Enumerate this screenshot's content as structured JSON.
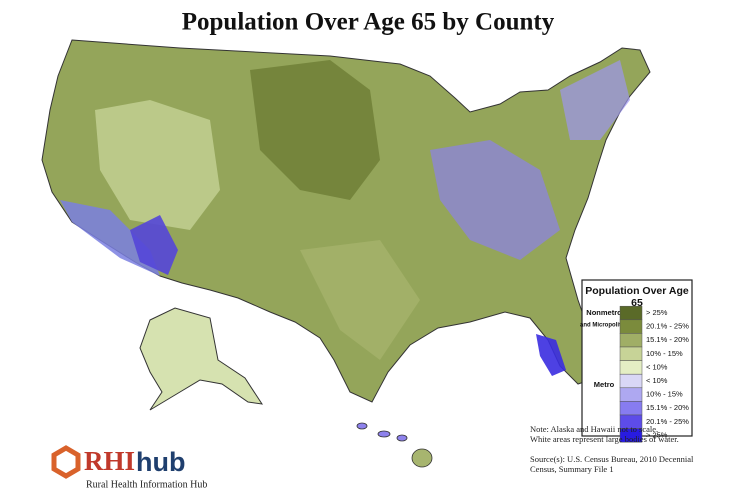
{
  "title": "Population Over Age 65 by County",
  "legend": {
    "title": "Population Over Age 65",
    "groups": [
      {
        "label": "Nonmetro",
        "sublabel": "and Micropolitan",
        "items": [
          {
            "label": "> 25%",
            "color": "#5a6a28"
          },
          {
            "label": "20.1% - 25%",
            "color": "#7b8b3c"
          },
          {
            "label": "15.1% - 20%",
            "color": "#a0ae66"
          },
          {
            "label": "10% - 15%",
            "color": "#c7d397"
          },
          {
            "label": "< 10%",
            "color": "#e4eec4"
          }
        ]
      },
      {
        "label": "Metro",
        "items": [
          {
            "label": "< 10%",
            "color": "#d9d7f6"
          },
          {
            "label": "10% - 15%",
            "color": "#aea8f1"
          },
          {
            "label": "15.1% - 20%",
            "color": "#877cf0"
          },
          {
            "label": "20.1% - 25%",
            "color": "#5d4ce9"
          },
          {
            "label": "> 25%",
            "color": "#281be0"
          }
        ]
      }
    ]
  },
  "notes": [
    "Note: Alaska and Hawaii not to scale.",
    "White areas represent large bodies of water."
  ],
  "source": [
    "Source(s): U.S. Census Bureau, 2010 Decennial",
    "Census, Summary File 1"
  ],
  "logo": {
    "brand_a": "RHI",
    "brand_b": "hub",
    "tagline": "Rural Health Information Hub"
  }
}
